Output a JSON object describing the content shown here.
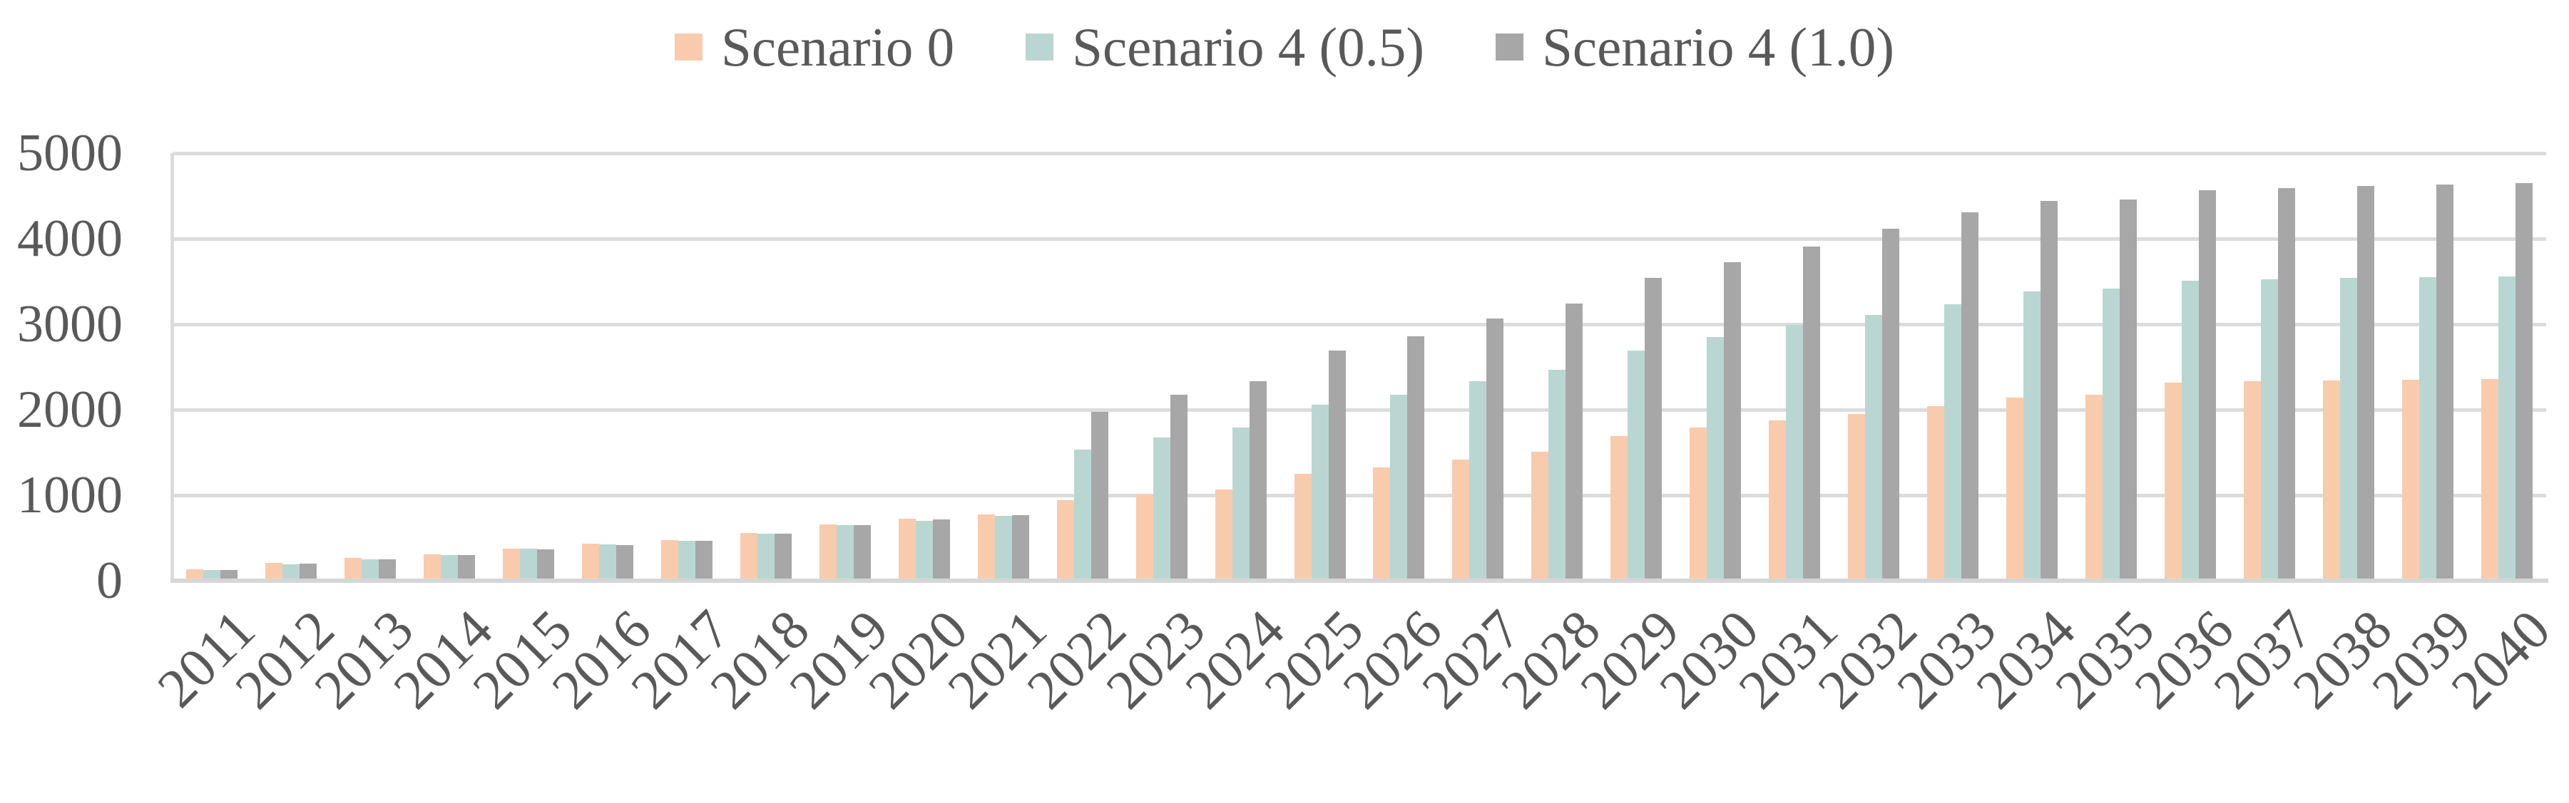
{
  "chart_data": {
    "type": "bar",
    "categories": [
      "2011",
      "2012",
      "2013",
      "2014",
      "2015",
      "2016",
      "2017",
      "2018",
      "2019",
      "2020",
      "2021",
      "2022",
      "2023",
      "2024",
      "2025",
      "2026",
      "2027",
      "2028",
      "2029",
      "2030",
      "2031",
      "2032",
      "2033",
      "2034",
      "2035",
      "2036",
      "2037",
      "2038",
      "2039",
      "2040"
    ],
    "series": [
      {
        "name": "Scenario 0",
        "color": "#F8CBAD",
        "values": [
          130,
          205,
          265,
          307,
          377,
          435,
          478,
          562,
          660,
          724,
          775,
          941,
          1009,
          1067,
          1248,
          1323,
          1420,
          1506,
          1692,
          1795,
          1877,
          1953,
          2039,
          2143,
          2172,
          2315,
          2330,
          2341,
          2350,
          2360
        ]
      },
      {
        "name": "Scenario 4 (0.5)",
        "color": "#BAD6D2",
        "values": [
          125,
          190,
          254,
          302,
          371,
          423,
          470,
          549,
          646,
          703,
          761,
          1535,
          1671,
          1794,
          2057,
          2176,
          2330,
          2464,
          2695,
          2852,
          2988,
          3106,
          3235,
          3380,
          3415,
          3505,
          3522,
          3540,
          3550,
          3560
        ]
      },
      {
        "name": "Scenario 4 (1.0)",
        "color": "#A7A7A7",
        "values": [
          128,
          196,
          250,
          297,
          364,
          417,
          465,
          551,
          652,
          716,
          764,
          1972,
          2176,
          2330,
          2688,
          2859,
          3063,
          3245,
          3539,
          3723,
          3907,
          4120,
          4308,
          4444,
          4458,
          4565,
          4590,
          4620,
          4635,
          4650
        ]
      }
    ],
    "y_ticks": [
      0,
      1000,
      2000,
      3000,
      4000,
      5000
    ],
    "y_tick_labels": [
      "0",
      "1000",
      "2000",
      "3000",
      "4000",
      "5000"
    ],
    "ylim": [
      0,
      5000
    ],
    "xlabel": "",
    "ylabel": "",
    "legend_position": "top",
    "grid": true
  },
  "colors": {
    "background": "#FFFFFF",
    "gridline": "#DCDCDC",
    "axis_line": "#D6D6D6",
    "text": "#595959"
  }
}
